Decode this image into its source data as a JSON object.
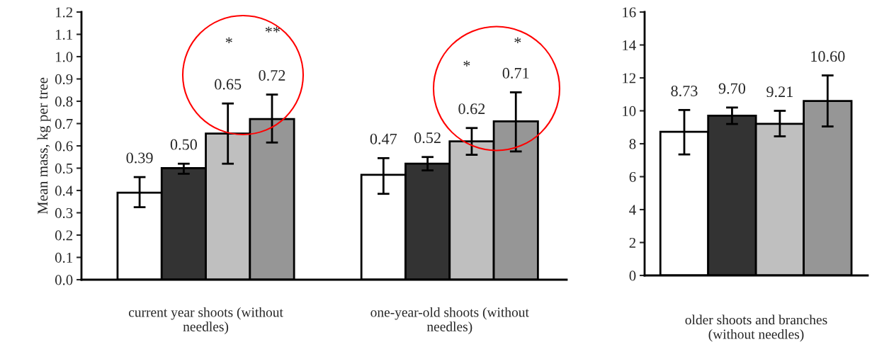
{
  "chart_data": [
    {
      "type": "bar",
      "ylabel": "Mean mass, kg per tree",
      "categories": [
        "current year shoots (without\nneedles)",
        "one-year-old shoots (without\nneedles)"
      ],
      "ylim": [
        0,
        1.2
      ],
      "yticks": [
        {
          "value": 0,
          "label": "0.0"
        },
        0.1,
        0.2,
        0.3,
        0.4,
        0.5,
        0.6,
        0.7,
        0.8,
        0.9,
        {
          "value": 1,
          "label": "1.0"
        },
        1.1,
        1.2
      ],
      "grid": false,
      "series": [
        {
          "color": "#ffffff",
          "values": [
            0.39,
            0.47
          ],
          "errors": [
            [
              0.325,
              0.46
            ],
            [
              0.385,
              0.545
            ]
          ],
          "value_labels": [
            "0.39",
            "0.47"
          ]
        },
        {
          "color": "#333333",
          "values": [
            0.5,
            0.52
          ],
          "errors": [
            [
              0.475,
              0.52
            ],
            [
              0.49,
              0.55
            ]
          ],
          "value_labels": [
            "0.50",
            "0.52"
          ]
        },
        {
          "color": "#bfbfbf",
          "values": [
            0.655,
            0.62
          ],
          "errors": [
            [
              0.52,
              0.79
            ],
            [
              0.56,
              0.68
            ]
          ],
          "value_labels": [
            "0.65",
            "0.62"
          ]
        },
        {
          "color": "#969696",
          "values": [
            0.72,
            0.71
          ],
          "errors": [
            [
              0.615,
              0.83
            ],
            [
              0.575,
              0.84
            ]
          ],
          "value_labels": [
            "0.72",
            "0.71"
          ]
        }
      ],
      "annotations": [
        "*",
        "**",
        "*",
        "*"
      ]
    },
    {
      "type": "bar",
      "xlabel": "older shoots and branches\n(without needles)",
      "categories": [
        null,
        null,
        null,
        null
      ],
      "ylim": [
        0,
        16
      ],
      "yticks": [
        0,
        2,
        4,
        6,
        8,
        10,
        12,
        14,
        16
      ],
      "grid": false,
      "series": [
        {
          "colors": [
            "#ffffff",
            "#333333",
            "#bfbfbf",
            "#969696"
          ],
          "values": [
            8.73,
            9.7,
            9.21,
            10.6
          ],
          "errors": [
            [
              7.35,
              10.05
            ],
            [
              9.2,
              10.2
            ],
            [
              8.45,
              10.0
            ],
            [
              9.05,
              12.15
            ]
          ],
          "value_labels": [
            "8.73",
            "9.70",
            "9.21",
            "10.60"
          ]
        }
      ]
    }
  ]
}
